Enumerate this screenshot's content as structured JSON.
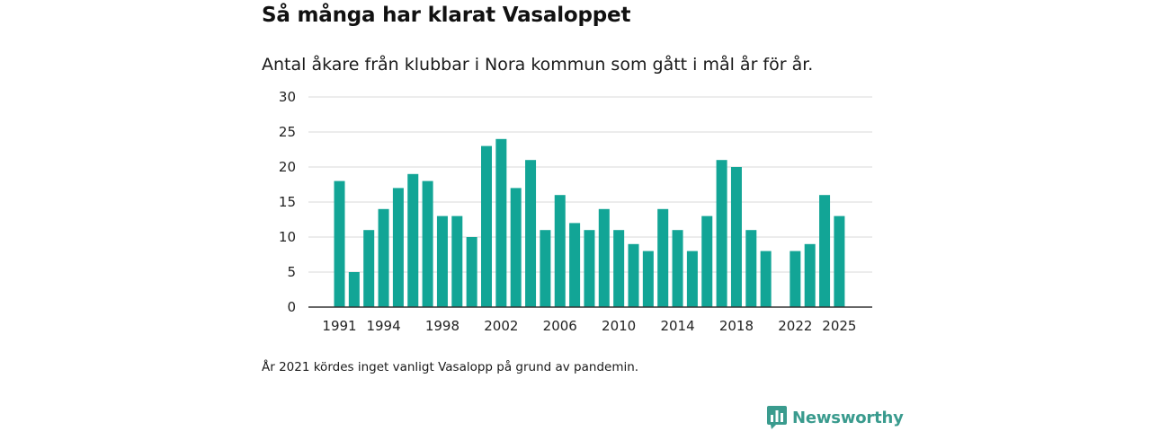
{
  "title": "Så många har klarat Vasaloppet",
  "subtitle": "Antal åkare från klubbar i Nora kommun som gått i mål år för år.",
  "note": "År 2021 kördes inget vanligt Vasalopp på grund av pandemin.",
  "brand": {
    "name": "Newsworthy",
    "icon": "newsworthy-logo-icon",
    "color": "#3a9b8e"
  },
  "colors": {
    "bar": "#12a596",
    "grid": "#d9d9d9",
    "axis": "#333333"
  },
  "chart_data": {
    "type": "bar",
    "title": "Så många har klarat Vasaloppet",
    "xlabel": "",
    "ylabel": "",
    "ylim": [
      0,
      30
    ],
    "yticks": [
      0,
      5,
      10,
      15,
      20,
      25,
      30
    ],
    "xticks": [
      1991,
      1994,
      1998,
      2002,
      2006,
      2010,
      2014,
      2018,
      2022,
      2025
    ],
    "grid": true,
    "categories": [
      1991,
      1992,
      1993,
      1994,
      1995,
      1996,
      1997,
      1998,
      1999,
      2000,
      2001,
      2002,
      2003,
      2004,
      2005,
      2006,
      2007,
      2008,
      2009,
      2010,
      2011,
      2012,
      2013,
      2014,
      2015,
      2016,
      2017,
      2018,
      2019,
      2020,
      2021,
      2022,
      2023,
      2024,
      2025
    ],
    "values": [
      18,
      5,
      11,
      14,
      17,
      19,
      18,
      13,
      13,
      10,
      23,
      24,
      17,
      21,
      11,
      16,
      12,
      11,
      14,
      11,
      9,
      8,
      14,
      11,
      8,
      13,
      21,
      20,
      11,
      8,
      null,
      8,
      9,
      16,
      13
    ]
  }
}
